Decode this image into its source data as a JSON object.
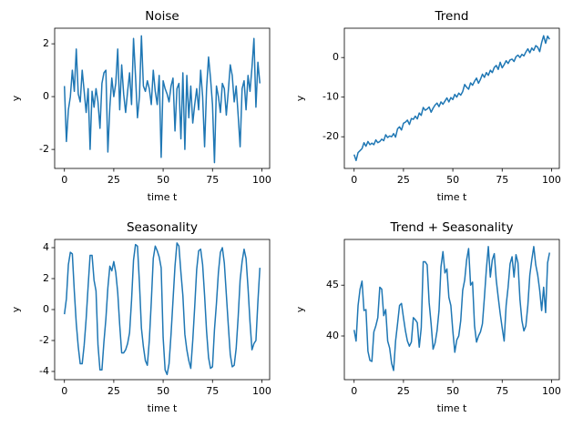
{
  "chart_data": [
    {
      "type": "line",
      "title": "Noise",
      "xlabel": "time t",
      "ylabel": "y",
      "color": "#1f77b4",
      "xlim": [
        -4.95,
        103.95
      ],
      "xticks": [
        0,
        25,
        50,
        75,
        100
      ],
      "ylim": [
        -2.72,
        2.59
      ],
      "yticks": [
        -2,
        0,
        2
      ],
      "x": [
        0,
        1,
        2,
        3,
        4,
        5,
        6,
        7,
        8,
        9,
        10,
        11,
        12,
        13,
        14,
        15,
        16,
        17,
        18,
        19,
        20,
        21,
        22,
        23,
        24,
        25,
        26,
        27,
        28,
        29,
        30,
        31,
        32,
        33,
        34,
        35,
        36,
        37,
        38,
        39,
        40,
        41,
        42,
        43,
        44,
        45,
        46,
        47,
        48,
        49,
        50,
        51,
        52,
        53,
        54,
        55,
        56,
        57,
        58,
        59,
        60,
        61,
        62,
        63,
        64,
        65,
        66,
        67,
        68,
        69,
        70,
        71,
        72,
        73,
        74,
        75,
        76,
        77,
        78,
        79,
        80,
        81,
        82,
        83,
        84,
        85,
        86,
        87,
        88,
        89,
        90,
        91,
        92,
        93,
        94,
        95,
        96,
        97,
        98,
        99
      ],
      "values": [
        0.4,
        -1.7,
        -0.5,
        0.0,
        1.0,
        0.2,
        1.8,
        0.1,
        -0.2,
        1.0,
        0.2,
        -0.6,
        0.3,
        -2.0,
        0.2,
        -0.4,
        0.3,
        -0.2,
        -1.2,
        0.5,
        0.9,
        1.0,
        -2.1,
        -0.4,
        0.7,
        0.0,
        0.5,
        1.8,
        -0.5,
        1.2,
        0.1,
        -0.6,
        0.2,
        0.9,
        -0.3,
        2.2,
        0.8,
        -0.8,
        0.0,
        2.3,
        0.4,
        0.2,
        0.6,
        0.3,
        -0.3,
        1.0,
        0.2,
        -0.3,
        0.8,
        -2.3,
        0.6,
        0.3,
        0.1,
        -0.2,
        0.4,
        0.7,
        -1.3,
        0.3,
        0.5,
        -1.6,
        0.9,
        -2.0,
        0.8,
        -0.8,
        0.4,
        -1.0,
        -0.3,
        0.3,
        -0.5,
        1.0,
        0.0,
        -1.9,
        0.3,
        1.5,
        0.7,
        -0.3,
        -2.5,
        0.4,
        0.0,
        -0.6,
        0.5,
        0.3,
        -0.7,
        0.2,
        1.2,
        0.8,
        -0.2,
        0.4,
        -0.7,
        -1.9,
        0.3,
        0.6,
        -0.5,
        0.8,
        0.2,
        1.1,
        2.2,
        -0.4,
        1.3,
        0.5
      ]
    },
    {
      "type": "line",
      "title": "Trend",
      "xlabel": "time t",
      "ylabel": "y",
      "color": "#1f77b4",
      "xlim": [
        -4.95,
        103.95
      ],
      "xticks": [
        0,
        25,
        50,
        75,
        100
      ],
      "ylim": [
        -28,
        7.4
      ],
      "yticks": [
        -20,
        -10,
        0
      ],
      "x": [
        0,
        1,
        2,
        3,
        4,
        5,
        6,
        7,
        8,
        9,
        10,
        11,
        12,
        13,
        14,
        15,
        16,
        17,
        18,
        19,
        20,
        21,
        22,
        23,
        24,
        25,
        26,
        27,
        28,
        29,
        30,
        31,
        32,
        33,
        34,
        35,
        36,
        37,
        38,
        39,
        40,
        41,
        42,
        43,
        44,
        45,
        46,
        47,
        48,
        49,
        50,
        51,
        52,
        53,
        54,
        55,
        56,
        57,
        58,
        59,
        60,
        61,
        62,
        63,
        64,
        65,
        66,
        67,
        68,
        69,
        70,
        71,
        72,
        73,
        74,
        75,
        76,
        77,
        78,
        79,
        80,
        81,
        82,
        83,
        84,
        85,
        86,
        87,
        88,
        89,
        90,
        91,
        92,
        93,
        94,
        95,
        96,
        97,
        98,
        99
      ],
      "values": [
        -24.5,
        -26.0,
        -24.0,
        -23.5,
        -23.0,
        -21.5,
        -22.4,
        -21.2,
        -22.0,
        -21.6,
        -22.0,
        -20.8,
        -21.5,
        -21.2,
        -20.6,
        -21.0,
        -19.5,
        -20.2,
        -19.8,
        -20.0,
        -19.2,
        -20.1,
        -18.0,
        -17.5,
        -18.3,
        -16.6,
        -16.3,
        -15.8,
        -16.9,
        -15.4,
        -15.6,
        -14.8,
        -15.5,
        -14.0,
        -14.6,
        -12.6,
        -13.3,
        -13.0,
        -12.5,
        -13.8,
        -12.8,
        -12.0,
        -11.5,
        -12.4,
        -11.2,
        -11.8,
        -11.0,
        -10.2,
        -11.2,
        -10.1,
        -10.6,
        -9.3,
        -10.0,
        -9.0,
        -9.5,
        -8.6,
        -6.8,
        -7.5,
        -8.0,
        -6.4,
        -7.0,
        -6.0,
        -5.2,
        -6.5,
        -5.5,
        -4.2,
        -5.0,
        -3.8,
        -4.5,
        -3.2,
        -3.8,
        -2.5,
        -2.0,
        -3.0,
        -1.2,
        -2.6,
        -1.8,
        -0.8,
        -1.5,
        -0.6,
        -0.4,
        -1.0,
        0.2,
        0.6,
        0.0,
        0.8,
        0.4,
        1.4,
        2.2,
        1.2,
        2.4,
        1.8,
        3.0,
        2.6,
        1.5,
        3.8,
        5.5,
        3.6,
        5.4,
        4.6
      ]
    },
    {
      "type": "line",
      "title": "Seasonality",
      "xlabel": "time t",
      "ylabel": "y",
      "color": "#1f77b4",
      "xlim": [
        -4.95,
        103.95
      ],
      "xticks": [
        0,
        25,
        50,
        75,
        100
      ],
      "ylim": [
        -4.53,
        4.53
      ],
      "yticks": [
        -4,
        -2,
        0,
        2,
        4
      ],
      "x": [
        0,
        1,
        2,
        3,
        4,
        5,
        6,
        7,
        8,
        9,
        10,
        11,
        12,
        13,
        14,
        15,
        16,
        17,
        18,
        19,
        20,
        21,
        22,
        23,
        24,
        25,
        26,
        27,
        28,
        29,
        30,
        31,
        32,
        33,
        34,
        35,
        36,
        37,
        38,
        39,
        40,
        41,
        42,
        43,
        44,
        45,
        46,
        47,
        48,
        49,
        50,
        51,
        52,
        53,
        54,
        55,
        56,
        57,
        58,
        59,
        60,
        61,
        62,
        63,
        64,
        65,
        66,
        67,
        68,
        69,
        70,
        71,
        72,
        73,
        74,
        75,
        76,
        77,
        78,
        79,
        80,
        81,
        82,
        83,
        84,
        85,
        86,
        87,
        88,
        89,
        90,
        91,
        92,
        93,
        94,
        95,
        96,
        97,
        98,
        99
      ],
      "values": [
        -0.3,
        0.7,
        2.9,
        3.7,
        3.6,
        1.2,
        -0.9,
        -2.4,
        -3.5,
        -3.5,
        -2.3,
        -0.6,
        1.5,
        3.5,
        3.5,
        1.9,
        1.2,
        -2.3,
        -3.9,
        -3.9,
        -2.1,
        -0.6,
        1.4,
        2.8,
        2.5,
        3.1,
        2.4,
        1.1,
        -1.0,
        -2.8,
        -2.8,
        -2.6,
        -2.2,
        -1.5,
        0.6,
        3.2,
        4.2,
        4.1,
        1.7,
        -1.2,
        -2.4,
        -3.3,
        -3.6,
        -2.0,
        0.5,
        3.3,
        4.1,
        3.8,
        3.4,
        2.7,
        -1.8,
        -3.9,
        -4.2,
        -3.5,
        -1.6,
        0.6,
        2.8,
        4.3,
        4.1,
        2.4,
        0.9,
        -1.6,
        -2.6,
        -3.3,
        -3.8,
        -2.0,
        0.2,
        2.6,
        3.8,
        3.9,
        2.9,
        0.9,
        -1.4,
        -3.1,
        -3.8,
        -3.7,
        -1.3,
        0.4,
        2.4,
        3.7,
        4.0,
        3.0,
        1.0,
        -1.0,
        -2.9,
        -3.7,
        -3.6,
        -2.5,
        -0.5,
        1.9,
        3.1,
        3.9,
        3.3,
        1.4,
        -0.8,
        -2.6,
        -2.2,
        -2.0,
        0.5,
        2.7
      ]
    },
    {
      "type": "line",
      "title": "Trend + Seasonality",
      "xlabel": "time t",
      "ylabel": "y",
      "color": "#1f77b4",
      "xlim": [
        -4.95,
        103.95
      ],
      "xticks": [
        0,
        25,
        50,
        75,
        100
      ],
      "ylim": [
        35.7,
        49.5
      ],
      "yticks": [
        40,
        45
      ],
      "x": [
        0,
        1,
        2,
        3,
        4,
        5,
        6,
        7,
        8,
        9,
        10,
        11,
        12,
        13,
        14,
        15,
        16,
        17,
        18,
        19,
        20,
        21,
        22,
        23,
        24,
        25,
        26,
        27,
        28,
        29,
        30,
        31,
        32,
        33,
        34,
        35,
        36,
        37,
        38,
        39,
        40,
        41,
        42,
        43,
        44,
        45,
        46,
        47,
        48,
        49,
        50,
        51,
        52,
        53,
        54,
        55,
        56,
        57,
        58,
        59,
        60,
        61,
        62,
        63,
        64,
        65,
        66,
        67,
        68,
        69,
        70,
        71,
        72,
        73,
        74,
        75,
        76,
        77,
        78,
        79,
        80,
        81,
        82,
        83,
        84,
        85,
        86,
        87,
        88,
        89,
        90,
        91,
        92,
        93,
        94,
        95,
        96,
        97,
        98,
        99
      ],
      "values": [
        40.6,
        39.5,
        43.0,
        44.6,
        45.4,
        42.5,
        42.6,
        38.5,
        37.6,
        37.5,
        40.4,
        41.0,
        41.8,
        44.8,
        44.6,
        42.0,
        42.6,
        39.5,
        38.8,
        37.3,
        36.6,
        39.5,
        41.2,
        43.0,
        43.2,
        41.8,
        40.5,
        39.5,
        39.0,
        39.4,
        41.8,
        41.6,
        41.3,
        38.9,
        40.8,
        47.3,
        47.3,
        47.0,
        43.3,
        41.2,
        38.7,
        39.3,
        40.5,
        42.5,
        46.8,
        48.3,
        46.2,
        46.6,
        43.8,
        43.0,
        40.5,
        38.4,
        39.6,
        40.0,
        41.5,
        44.5,
        45.5,
        47.5,
        48.6,
        45.0,
        45.3,
        41.0,
        39.4,
        40.0,
        40.4,
        41.2,
        43.8,
        46.6,
        48.8,
        45.8,
        47.5,
        48.1,
        45.5,
        43.8,
        42.2,
        40.8,
        39.5,
        43.0,
        44.8,
        47.1,
        47.8,
        45.8,
        48.0,
        47.2,
        43.6,
        41.5,
        40.5,
        41.0,
        43.0,
        46.0,
        47.5,
        48.8,
        47.0,
        46.0,
        44.5,
        42.5,
        44.8,
        42.3,
        47.2,
        48.2
      ]
    }
  ]
}
